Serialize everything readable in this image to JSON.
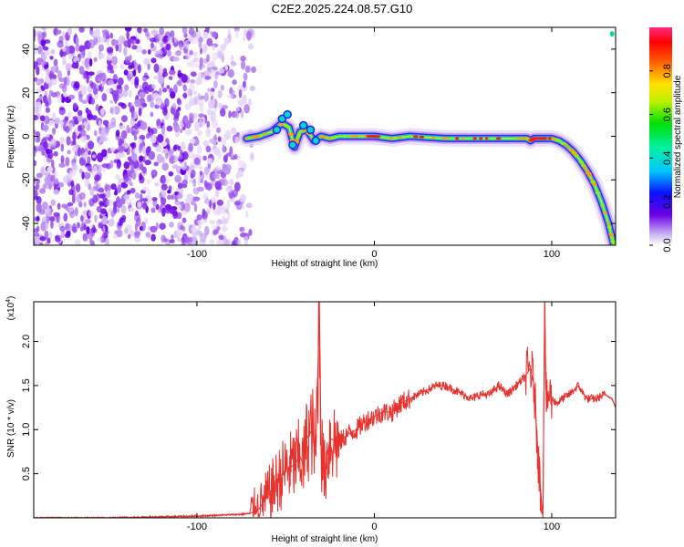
{
  "title": "C2E2.2025.224.08.57.G10",
  "chart_data": [
    {
      "type": "heatmap",
      "xlabel": "Height of straight line (km)",
      "ylabel": "Frequency (Hz)",
      "xlim": [
        -192,
        136
      ],
      "ylim": [
        -50,
        50
      ],
      "x_ticks": [
        -100,
        0,
        100
      ],
      "x_tick_labels": [
        "-100",
        "0",
        "100"
      ],
      "y_ticks": [
        -40,
        -20,
        0,
        20,
        40
      ],
      "y_tick_labels": [
        "-40",
        "-20",
        "0",
        "20",
        "40"
      ],
      "noise_region_x": [
        -192,
        -68
      ],
      "ridge": {
        "x": [
          -72,
          -65,
          -58,
          -52,
          -48,
          -45,
          -42,
          -38,
          -34,
          -30,
          -25,
          -20,
          -10,
          0,
          10,
          20,
          40,
          60,
          80,
          86,
          88,
          90,
          95,
          100,
          104,
          108,
          112,
          116,
          120,
          124,
          128,
          132,
          135
        ],
        "y": [
          -1,
          0,
          2,
          6,
          4,
          -5,
          2,
          3,
          -2,
          0,
          -1,
          0,
          0,
          0,
          -1,
          0,
          -1,
          -1,
          -1,
          -1,
          -2,
          -1,
          -1,
          -1,
          -2,
          -4,
          -7,
          -11,
          -16,
          -22,
          -30,
          -40,
          -50
        ]
      },
      "colorbar": {
        "label": "Normalized spectral amplitude",
        "range": [
          0,
          1
        ],
        "ticks": [
          0.0,
          0.2,
          0.4,
          0.6,
          0.8
        ],
        "tick_labels": [
          "0.0",
          "0.2",
          "0.4",
          "0.6",
          "0.8"
        ]
      },
      "grid": false
    },
    {
      "type": "line",
      "xlabel": "Height of straight line (km)",
      "ylabel": "SNR (10 * v/v)",
      "scale_label": "(x10",
      "scale_exponent": "4",
      "scale_suffix": ")",
      "xlim": [
        -192,
        136
      ],
      "ylim": [
        0,
        2.45
      ],
      "x_ticks": [
        -100,
        0,
        100
      ],
      "x_tick_labels": [
        "-100",
        "0",
        "100"
      ],
      "y_ticks": [
        0.5,
        1.0,
        1.5,
        2.0
      ],
      "y_tick_labels": [
        "0.5",
        "1.0",
        "1.5",
        "2.0"
      ],
      "series": [
        {
          "color": "#e8322e",
          "x": [
            -192,
            -150,
            -100,
            -75,
            -70,
            -65,
            -60,
            -55,
            -50,
            -45,
            -42,
            -40,
            -38,
            -35,
            -33,
            -31,
            -30,
            -28,
            -25,
            -20,
            -15,
            -10,
            -5,
            0,
            5,
            10,
            15,
            20,
            25,
            30,
            35,
            40,
            45,
            50,
            55,
            60,
            65,
            70,
            75,
            80,
            85,
            88,
            90,
            93,
            95,
            96,
            97,
            98,
            100,
            103,
            106,
            110,
            115,
            118,
            120,
            125,
            130,
            134,
            136
          ],
          "y": [
            0.0,
            0.0,
            0.02,
            0.04,
            0.05,
            0.1,
            0.25,
            0.4,
            0.55,
            0.6,
            0.7,
            0.6,
            0.9,
            1.0,
            0.7,
            2.45,
            0.8,
            0.5,
            0.9,
            0.85,
            0.95,
            1.0,
            1.1,
            1.15,
            1.2,
            1.2,
            1.3,
            1.35,
            1.4,
            1.45,
            1.5,
            1.5,
            1.45,
            1.4,
            1.35,
            1.4,
            1.4,
            1.5,
            1.4,
            1.5,
            1.6,
            1.7,
            1.5,
            0.5,
            0.0,
            2.45,
            1.2,
            1.4,
            1.35,
            1.3,
            1.35,
            1.4,
            1.5,
            1.4,
            1.35,
            1.35,
            1.4,
            1.35,
            1.25
          ]
        }
      ],
      "grid": false
    }
  ]
}
